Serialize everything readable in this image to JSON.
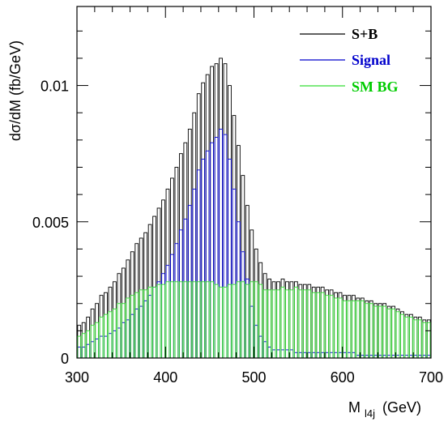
{
  "chart_data": {
    "type": "bar",
    "subtype": "histogram-overlay",
    "xlabel_main": "M",
    "xlabel_sub": "l4j",
    "xlabel_unit": "(GeV)",
    "ylabel": "dσ/dM (fb/GeV)",
    "xlim": [
      300,
      700
    ],
    "ylim": [
      0,
      0.0129
    ],
    "x_ticks": [
      300,
      400,
      500,
      600,
      700
    ],
    "x_tick_labels": [
      "300",
      "400",
      "500",
      "600",
      "700"
    ],
    "y_ticks": [
      0,
      0.005,
      0.01
    ],
    "y_tick_labels": [
      "0",
      "0.005",
      "0.01"
    ],
    "bin_width": 5,
    "legend_position": "top-right",
    "x_bin_centers": [
      302.5,
      307.5,
      312.5,
      317.5,
      322.5,
      327.5,
      332.5,
      337.5,
      342.5,
      347.5,
      352.5,
      357.5,
      362.5,
      367.5,
      372.5,
      377.5,
      382.5,
      387.5,
      392.5,
      397.5,
      402.5,
      407.5,
      412.5,
      417.5,
      422.5,
      427.5,
      432.5,
      437.5,
      442.5,
      447.5,
      452.5,
      457.5,
      462.5,
      467.5,
      472.5,
      477.5,
      482.5,
      487.5,
      492.5,
      497.5,
      502.5,
      507.5,
      512.5,
      517.5,
      522.5,
      527.5,
      532.5,
      537.5,
      542.5,
      547.5,
      552.5,
      557.5,
      562.5,
      567.5,
      572.5,
      577.5,
      582.5,
      587.5,
      592.5,
      597.5,
      602.5,
      607.5,
      612.5,
      617.5,
      622.5,
      627.5,
      632.5,
      637.5,
      642.5,
      647.5,
      652.5,
      657.5,
      662.5,
      667.5,
      672.5,
      677.5,
      682.5,
      687.5,
      692.5,
      697.5
    ],
    "series": [
      {
        "name": "S+B",
        "color": "#000000",
        "values": [
          0.0012,
          0.0013,
          0.0015,
          0.0018,
          0.002,
          0.0023,
          0.0024,
          0.0026,
          0.0028,
          0.0031,
          0.0033,
          0.0036,
          0.0039,
          0.0042,
          0.0044,
          0.0046,
          0.0049,
          0.0052,
          0.0055,
          0.0058,
          0.0062,
          0.0066,
          0.007,
          0.0075,
          0.0079,
          0.0084,
          0.009,
          0.0097,
          0.0101,
          0.0104,
          0.0107,
          0.0108,
          0.011,
          0.0108,
          0.01,
          0.0089,
          0.0078,
          0.0067,
          0.0056,
          0.0047,
          0.004,
          0.0035,
          0.0031,
          0.0029,
          0.0028,
          0.0028,
          0.0029,
          0.0028,
          0.0028,
          0.0028,
          0.0027,
          0.0027,
          0.0027,
          0.0026,
          0.0026,
          0.0026,
          0.0025,
          0.0025,
          0.0024,
          0.0024,
          0.0023,
          0.0023,
          0.0023,
          0.0022,
          0.0022,
          0.0021,
          0.0021,
          0.002,
          0.002,
          0.002,
          0.0019,
          0.0019,
          0.0018,
          0.0017,
          0.0016,
          0.0016,
          0.0015,
          0.0015,
          0.0014,
          0.0014
        ]
      },
      {
        "name": "Signal",
        "color": "#0000cc",
        "values": [
          0.0004,
          0.0004,
          0.0005,
          0.0006,
          0.0007,
          0.0008,
          0.0008,
          0.0009,
          0.001,
          0.0011,
          0.0013,
          0.0014,
          0.0016,
          0.0018,
          0.0019,
          0.0021,
          0.0023,
          0.0026,
          0.0028,
          0.0031,
          0.0034,
          0.0038,
          0.0042,
          0.0047,
          0.0051,
          0.0056,
          0.0062,
          0.0069,
          0.0073,
          0.0076,
          0.0079,
          0.0081,
          0.0084,
          0.0082,
          0.0073,
          0.0062,
          0.005,
          0.0039,
          0.0029,
          0.0019,
          0.0012,
          0.0008,
          0.0006,
          0.0004,
          0.0003,
          0.0003,
          0.0003,
          0.0003,
          0.0003,
          0.0002,
          0.0002,
          0.0002,
          0.0002,
          0.0002,
          0.0002,
          0.0002,
          0.0002,
          0.0002,
          0.0002,
          0.0002,
          0.0002,
          0.0002,
          0.0002,
          0.0001,
          0.0001,
          0.0001,
          0.0001,
          0.0001,
          0.0001,
          0.0001,
          0.0001,
          0.0001,
          0.0001,
          0.0001,
          0.0001,
          0.0001,
          0.0001,
          0.0001,
          0.0001,
          0.0001
        ]
      },
      {
        "name": "SM BG",
        "color": "#33dd33",
        "values": [
          0.0008,
          0.0009,
          0.001,
          0.0012,
          0.0013,
          0.0015,
          0.0016,
          0.0017,
          0.0018,
          0.002,
          0.002,
          0.0022,
          0.0023,
          0.0024,
          0.0025,
          0.0025,
          0.0026,
          0.0026,
          0.0027,
          0.0027,
          0.0028,
          0.0028,
          0.0028,
          0.0028,
          0.0028,
          0.0028,
          0.0028,
          0.0028,
          0.0028,
          0.0028,
          0.0028,
          0.0027,
          0.0026,
          0.0026,
          0.0027,
          0.0027,
          0.0028,
          0.0028,
          0.0027,
          0.0028,
          0.0028,
          0.0027,
          0.0025,
          0.0025,
          0.0025,
          0.0025,
          0.0026,
          0.0025,
          0.0025,
          0.0026,
          0.0025,
          0.0025,
          0.0025,
          0.0024,
          0.0024,
          0.0024,
          0.0023,
          0.0023,
          0.0022,
          0.0022,
          0.0021,
          0.0021,
          0.0021,
          0.0021,
          0.0021,
          0.002,
          0.002,
          0.0019,
          0.0019,
          0.0019,
          0.0018,
          0.0018,
          0.0017,
          0.0016,
          0.0015,
          0.0015,
          0.0014,
          0.0014,
          0.0013,
          0.0013
        ]
      }
    ],
    "legend": [
      {
        "label": "S+B",
        "color": "#000000"
      },
      {
        "label": "Signal",
        "color": "#0000cc"
      },
      {
        "label": "SM BG",
        "color": "#00cc00"
      }
    ]
  }
}
